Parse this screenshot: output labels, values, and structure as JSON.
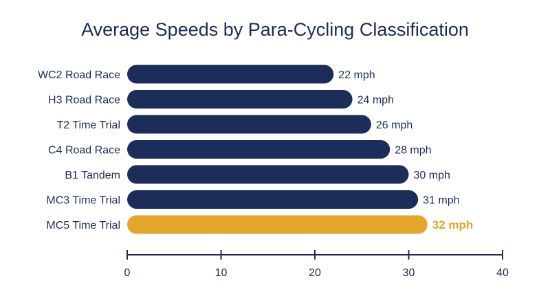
{
  "chart_data": {
    "type": "bar",
    "orientation": "horizontal",
    "title": "Average Speeds by Para-Cycling Classification",
    "xlabel": "",
    "ylabel": "",
    "xlim": [
      0,
      40
    ],
    "x_ticks": [
      0,
      10,
      20,
      30,
      40
    ],
    "grid": false,
    "categories": [
      "WC2 Road Race",
      "H3 Road Race",
      "T2 Time Trial",
      "C4 Road Race",
      "B1 Tandem",
      "MC3 Time Trial",
      "MC5 Time Trial"
    ],
    "values": [
      22,
      24,
      26,
      28,
      30,
      31,
      32
    ],
    "value_labels": [
      "22 mph",
      "24 mph",
      "26 mph",
      "28 mph",
      "30 mph",
      "31 mph",
      "32 mph"
    ],
    "highlight_index": 6,
    "colors": {
      "bar": "#1c2d5a",
      "highlight": "#e3a52b",
      "text": "#1c2b57",
      "axis": "#1c2b57"
    }
  }
}
